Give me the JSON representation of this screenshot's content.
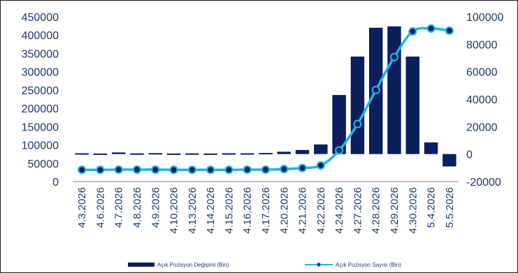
{
  "chart_data": {
    "type": "bar",
    "categories": [
      "4.3.2026",
      "4.6.2026",
      "4.7.2026",
      "4.8.2026",
      "4.9.2026",
      "4.10.2026",
      "4.13.2026",
      "4.14.2026",
      "4.15.2026",
      "4.16.2026",
      "4.17.2026",
      "4.20.2026",
      "4.21.2026",
      "4.22.2026",
      "4.24.2026",
      "4.27.2026",
      "4.28.2026",
      "4.29.2026",
      "4.30.2026",
      "5.4.2026",
      "5.5.2026"
    ],
    "series": [
      {
        "name": "Açık Pozisyon Değişimi (Bin)",
        "type": "bar",
        "axis": "right",
        "color": "#0a1f5c",
        "values": [
          600,
          400,
          1200,
          500,
          700,
          400,
          500,
          400,
          600,
          600,
          800,
          1700,
          3000,
          7000,
          43000,
          71000,
          92000,
          93000,
          71000,
          8500,
          -9000
        ]
      },
      {
        "name": "Açık Pozisyon Sayısı (Bin)",
        "type": "line",
        "axis": "left",
        "color": "#1fb3e8",
        "values": [
          32000,
          32000,
          32500,
          32500,
          32500,
          32000,
          32000,
          32000,
          32000,
          32500,
          32500,
          34000,
          37000,
          44000,
          85000,
          157000,
          250000,
          340000,
          410000,
          418000,
          412000
        ]
      }
    ],
    "y_left": {
      "min": 0,
      "max": 450000,
      "ticks": [
        "0",
        "50000",
        "100000",
        "150000",
        "200000",
        "250000",
        "300000",
        "350000",
        "400000",
        "450000"
      ]
    },
    "y_right": {
      "min": -20000,
      "max": 100000,
      "ticks": [
        "-20000",
        "0",
        "20000",
        "40000",
        "60000",
        "80000",
        "100000"
      ]
    },
    "grid": false,
    "legend_position": "bottom"
  }
}
